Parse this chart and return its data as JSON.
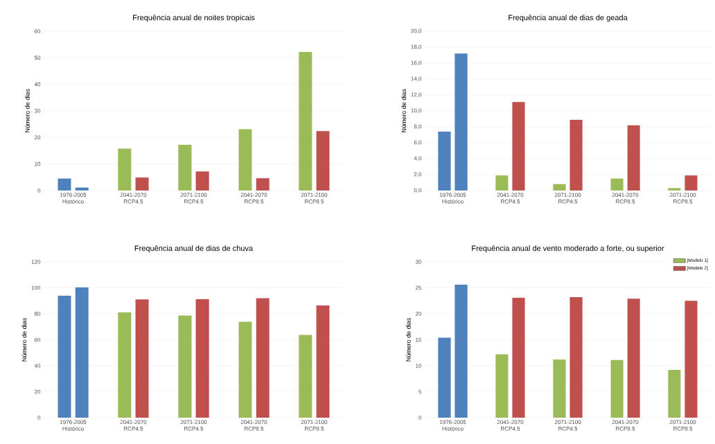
{
  "chart_data": [
    {
      "type": "bar",
      "title": "Frequência anual de noites tropicais",
      "ylabel": "Número de dias",
      "categories": [
        "1976-2005 Histórico",
        "2041-2070 RCP4.5",
        "2071-2100 RCP4.5",
        "2041-2070 RCP8.5",
        "2071-2100 RCP8.5"
      ],
      "series": [
        {
          "colors": [
            "#4f81bd",
            "#9bbb59",
            "#9bbb59",
            "#9bbb59",
            "#9bbb59"
          ],
          "values": [
            4.5,
            15.8,
            17.2,
            23.1,
            52.2
          ]
        },
        {
          "colors": [
            "#4f81bd",
            "#c0504d",
            "#c0504d",
            "#c0504d",
            "#c0504d"
          ],
          "values": [
            1.1,
            4.9,
            7.2,
            4.6,
            22.4
          ]
        }
      ],
      "ylim": [
        0,
        60
      ],
      "yticks": [
        0,
        10,
        20,
        30,
        40,
        50,
        60
      ],
      "grid": "y",
      "legend": false
    },
    {
      "type": "bar",
      "title": "Frequência anual de dias de geada",
      "ylabel": "Número de dias",
      "categories": [
        "1976-2005 Histórico",
        "2041-2070 RCP4.5",
        "2071-2100 RCP4.5",
        "2041-2070 RCP8.5",
        "2071-2100 RCP8.5"
      ],
      "series": [
        {
          "colors": [
            "#4f81bd",
            "#9bbb59",
            "#9bbb59",
            "#9bbb59",
            "#9bbb59"
          ],
          "values": [
            7.4,
            1.9,
            0.8,
            1.5,
            0.3
          ]
        },
        {
          "colors": [
            "#4f81bd",
            "#c0504d",
            "#c0504d",
            "#c0504d",
            "#c0504d"
          ],
          "values": [
            17.2,
            11.1,
            8.9,
            8.2,
            1.9
          ]
        }
      ],
      "ylim": [
        0,
        20
      ],
      "yticks": [
        {
          "value": 0,
          "label": "0,0"
        },
        {
          "value": 2,
          "label": "2,0"
        },
        {
          "value": 4,
          "label": "4,0"
        },
        {
          "value": 6,
          "label": "6,0"
        },
        {
          "value": 8,
          "label": "8,0"
        },
        {
          "value": 10,
          "label": "10,0"
        },
        {
          "value": 12,
          "label": "12,0"
        },
        {
          "value": 14,
          "label": "14,0"
        },
        {
          "value": 16,
          "label": "16,0"
        },
        {
          "value": 18,
          "label": "18,0"
        },
        {
          "value": 20,
          "label": "20,0"
        }
      ],
      "grid": "y",
      "legend": false
    },
    {
      "type": "bar",
      "title": "Frequência anual de dias de chuva",
      "ylabel": "Número de dias",
      "categories": [
        "1976-2005 Histórico",
        "2041-2070 RCP4.5",
        "2071-2100 RCP4.5",
        "2041-2070 RCP8.5",
        "2071-2100 RCP8.5"
      ],
      "series": [
        {
          "colors": [
            "#4f81bd",
            "#9bbb59",
            "#9bbb59",
            "#9bbb59",
            "#9bbb59"
          ],
          "values": [
            94,
            81,
            78.6,
            73.9,
            63.8
          ]
        },
        {
          "colors": [
            "#4f81bd",
            "#c0504d",
            "#c0504d",
            "#c0504d",
            "#c0504d"
          ],
          "values": [
            100.4,
            91,
            91.4,
            92,
            86.5
          ]
        }
      ],
      "ylim": [
        0,
        120
      ],
      "yticks": [
        0,
        20,
        40,
        60,
        80,
        100,
        120
      ],
      "grid": "y",
      "legend": false
    },
    {
      "type": "bar",
      "title": "Frequência anual de vento moderado a forte, ou superior",
      "ylabel": "Número de dias",
      "categories": [
        "1976-2005 Histórico",
        "2041-2070 RCP4.5",
        "2071-2100 RCP4.5",
        "2041-2070 RCP8.5",
        "2071-2100 RCP8.5"
      ],
      "series": [
        {
          "name": "[Modelo 1]",
          "color": "#9bbb59",
          "colors": [
            "#4f81bd",
            "#9bbb59",
            "#9bbb59",
            "#9bbb59",
            "#9bbb59"
          ],
          "values": [
            15.4,
            12.2,
            11.2,
            11.1,
            9.2
          ]
        },
        {
          "name": "[Modelo 2]",
          "color": "#c0504d",
          "colors": [
            "#4f81bd",
            "#c0504d",
            "#c0504d",
            "#c0504d",
            "#c0504d"
          ],
          "values": [
            25.6,
            23.1,
            23.2,
            22.9,
            22.5
          ]
        }
      ],
      "ylim": [
        0,
        30
      ],
      "yticks": [
        0,
        5,
        10,
        15,
        20,
        25,
        30
      ],
      "grid": "y",
      "legend": "top right"
    }
  ]
}
